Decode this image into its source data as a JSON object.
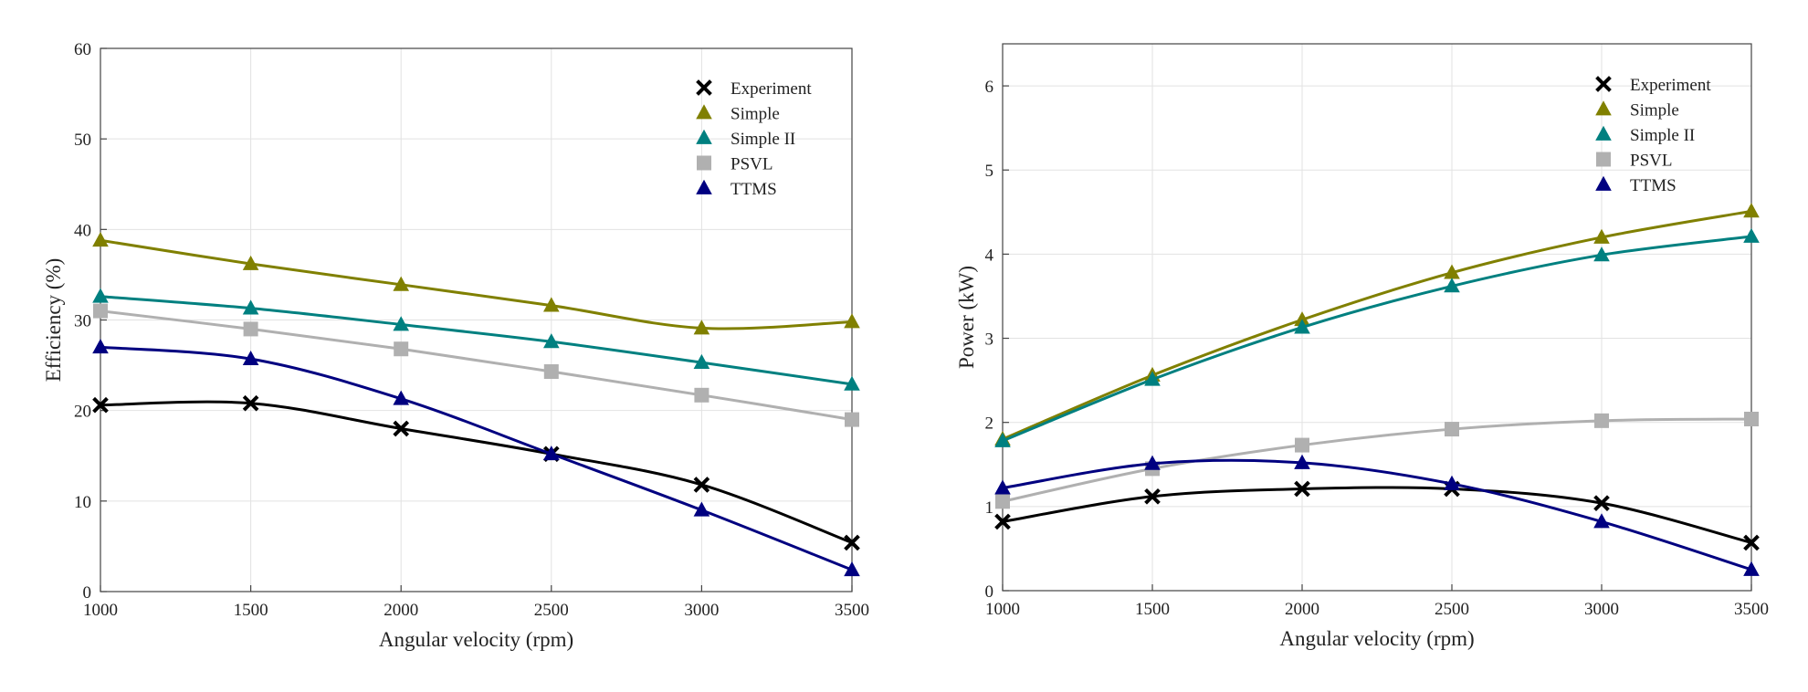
{
  "chart_data": [
    {
      "type": "line",
      "title": "",
      "xlabel": "Angular velocity (rpm)",
      "ylabel": "Efficiency (%)",
      "xlim": [
        1000,
        3500
      ],
      "ylim": [
        0,
        60
      ],
      "x_ticks": [
        1000,
        1500,
        2000,
        2500,
        3000,
        3500
      ],
      "y_ticks": [
        0,
        10,
        20,
        30,
        40,
        50,
        60
      ],
      "grid": true,
      "legend_position": "top-right",
      "x": [
        1000,
        1500,
        2000,
        2500,
        3000,
        3500
      ],
      "series": [
        {
          "name": "Experiment",
          "marker": "x",
          "color": "#000000",
          "values": [
            20.6,
            20.8,
            18.0,
            15.2,
            11.8,
            5.4
          ]
        },
        {
          "name": "Simple",
          "marker": "triangle",
          "color": "#808000",
          "values": [
            38.8,
            36.2,
            33.9,
            31.6,
            29.1,
            29.8
          ]
        },
        {
          "name": "Simple II",
          "marker": "triangle",
          "color": "#008080",
          "values": [
            32.6,
            31.3,
            29.5,
            27.6,
            25.3,
            22.9
          ]
        },
        {
          "name": "PSVL",
          "marker": "square",
          "color": "#b0b0b0",
          "values": [
            31.0,
            29.0,
            26.8,
            24.3,
            21.7,
            19.0
          ]
        },
        {
          "name": "TTMS",
          "marker": "triangle",
          "color": "#000080",
          "values": [
            27.0,
            25.7,
            21.3,
            15.2,
            9.0,
            2.4
          ]
        }
      ]
    },
    {
      "type": "line",
      "title": "",
      "xlabel": "Angular velocity (rpm)",
      "ylabel": "Power (kW)",
      "xlim": [
        1000,
        3500
      ],
      "ylim": [
        0,
        6.5
      ],
      "x_ticks": [
        1000,
        1500,
        2000,
        2500,
        3000,
        3500
      ],
      "y_ticks": [
        0,
        1,
        2,
        3,
        4,
        5,
        6
      ],
      "grid": true,
      "legend_position": "top-right",
      "x": [
        1000,
        1500,
        2000,
        2500,
        3000,
        3500
      ],
      "series": [
        {
          "name": "Experiment",
          "marker": "x",
          "color": "#000000",
          "values": [
            0.82,
            1.12,
            1.21,
            1.21,
            1.04,
            0.57
          ]
        },
        {
          "name": "Simple",
          "marker": "triangle",
          "color": "#808000",
          "values": [
            1.8,
            2.56,
            3.22,
            3.78,
            4.2,
            4.51
          ]
        },
        {
          "name": "Simple II",
          "marker": "triangle",
          "color": "#008080",
          "values": [
            1.78,
            2.51,
            3.13,
            3.62,
            3.99,
            4.21
          ]
        },
        {
          "name": "PSVL",
          "marker": "square",
          "color": "#b0b0b0",
          "values": [
            1.06,
            1.45,
            1.73,
            1.92,
            2.02,
            2.04
          ]
        },
        {
          "name": "TTMS",
          "marker": "triangle",
          "color": "#000080",
          "values": [
            1.22,
            1.51,
            1.52,
            1.27,
            0.82,
            0.25
          ]
        }
      ]
    }
  ]
}
